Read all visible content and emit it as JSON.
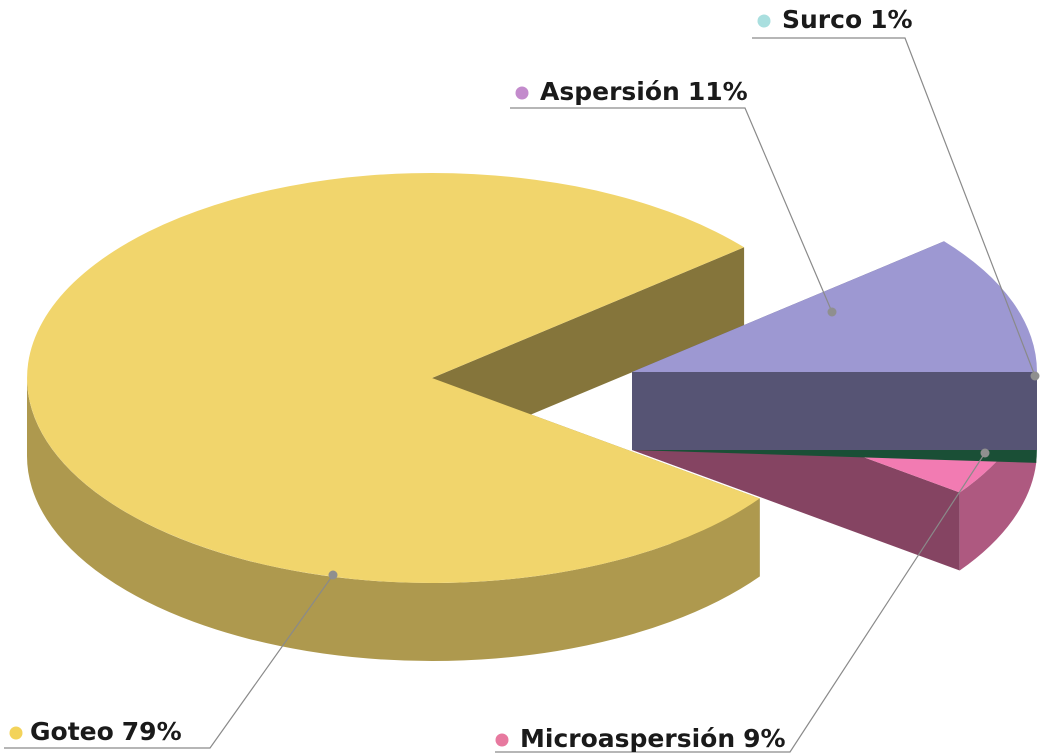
{
  "chart_data": {
    "type": "pie3d",
    "categories": [
      "Goteo",
      "Aspersión",
      "Surco",
      "Microaspersión"
    ],
    "values": [
      79,
      11,
      1,
      9
    ],
    "value_labels": [
      "79%",
      "11%",
      "1%",
      "9%"
    ],
    "colors": [
      "#f1d56c",
      "#9d98d2",
      "#2f8f62",
      "#f27bb2"
    ],
    "legend_colors": [
      "#f3d35a",
      "#c38bcc",
      "#a9dfdf",
      "#e7799f"
    ]
  }
}
